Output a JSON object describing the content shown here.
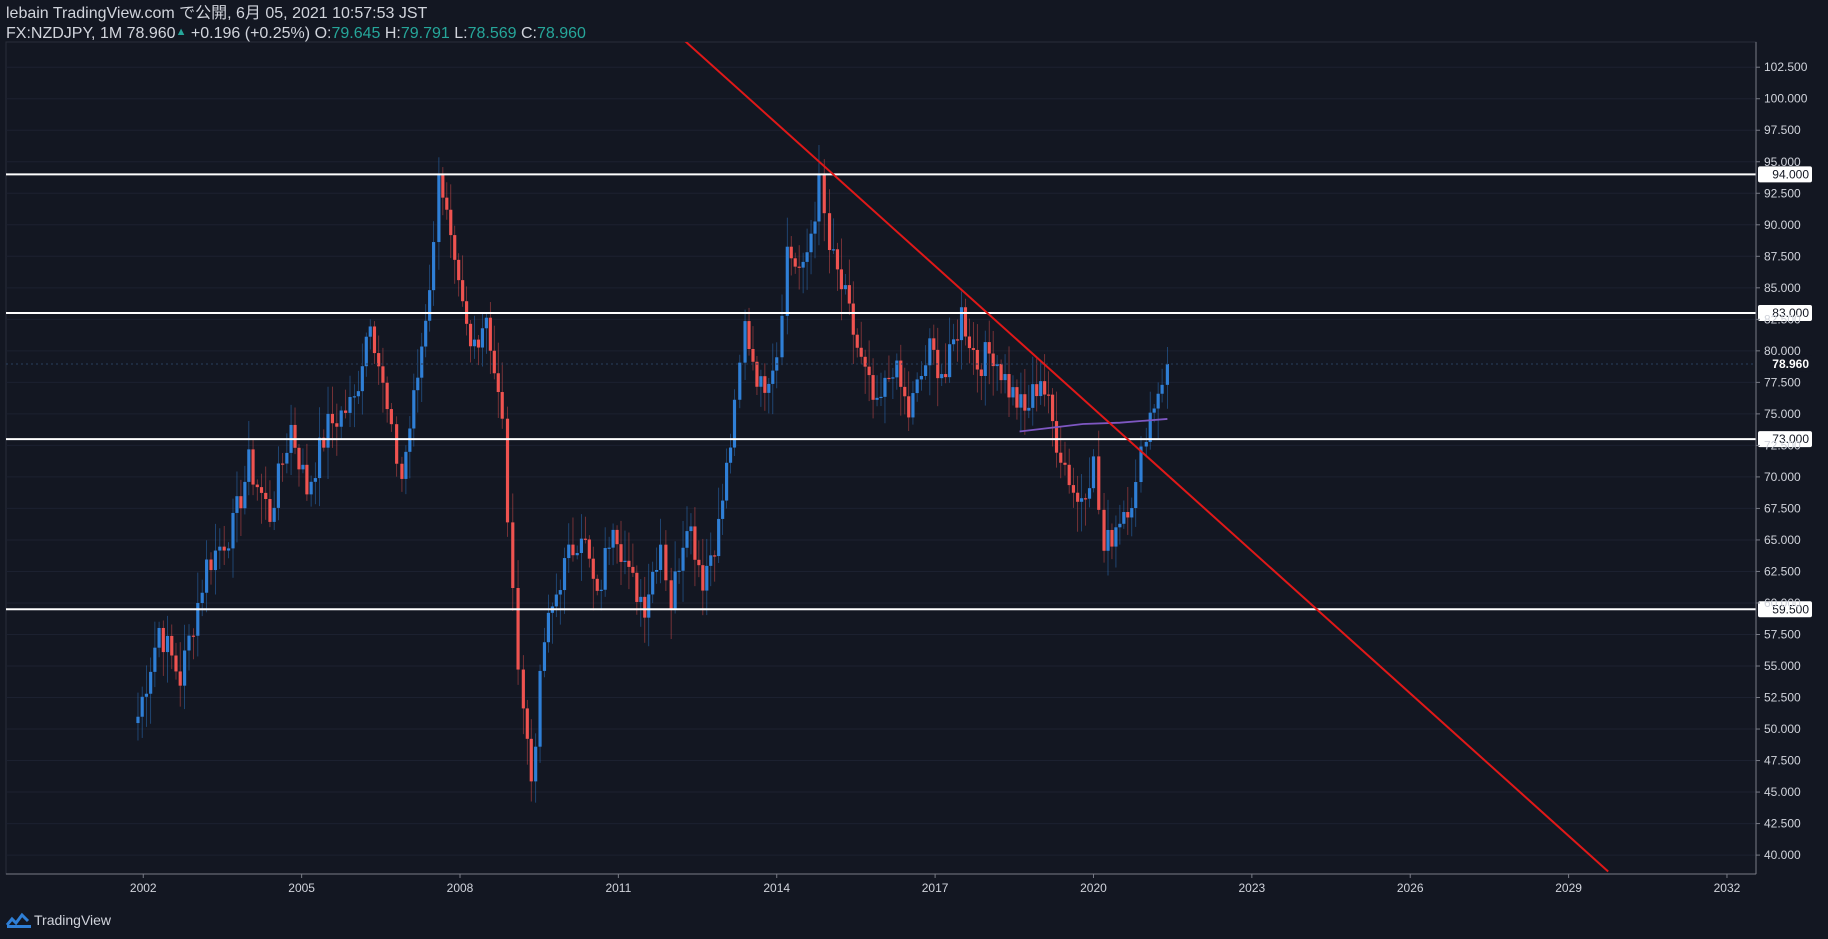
{
  "header": {
    "line1": "lebain TradingView.com で公開, 6月 05, 2021 10:57:53 JST",
    "symbol": "FX:NZDJPY, 1M 78.960",
    "change_arrow": "▲",
    "change": "+0.196 (+0.25%)",
    "open_label": "O:",
    "open": "79.645",
    "high_label": "H:",
    "high": "79.791",
    "low_label": "L:",
    "low": "78.569",
    "close_label": "C:",
    "close": "78.960"
  },
  "footer": {
    "brand": "TradingView"
  },
  "colors": {
    "background": "#131722",
    "up": "#2f7fd6",
    "down": "#ef5350",
    "trendline": "#e01818",
    "hline": "#ffffff",
    "ma": "#7e57c2",
    "axis_text": "#d1d4dc"
  },
  "chart_data": {
    "type": "candlestick",
    "symbol": "FX:NZDJPY",
    "interval": "1M",
    "ylim": [
      38.5,
      104.5
    ],
    "y_ticks": [
      "40.000",
      "42.500",
      "45.000",
      "47.500",
      "50.000",
      "52.500",
      "55.000",
      "57.500",
      "60.000",
      "62.500",
      "65.000",
      "67.500",
      "70.000",
      "72.500",
      "75.000",
      "77.500",
      "80.000",
      "82.500",
      "85.000",
      "87.500",
      "90.000",
      "92.500",
      "95.000",
      "97.500",
      "100.000",
      "102.500"
    ],
    "x_ticks": [
      "2002",
      "2005",
      "2008",
      "2011",
      "2014",
      "2017",
      "2020",
      "2023",
      "2026",
      "2029",
      "2032"
    ],
    "xlim": [
      1999.4,
      2032.55
    ],
    "price_label": "78.960",
    "last_price": 78.96,
    "horizontal_lines": [
      94.0,
      83.0,
      73.0,
      59.5
    ],
    "horizontal_line_labels": [
      "94.000",
      "83.000",
      "73.000",
      "59.500"
    ],
    "trendline": {
      "from": [
        2012.15,
        105.0
      ],
      "to": [
        2029.75,
        38.7
      ]
    },
    "moving_average": [
      [
        2018.6,
        73.6
      ],
      [
        2019.2,
        73.9
      ],
      [
        2019.8,
        74.2
      ],
      [
        2020.5,
        74.3
      ],
      [
        2021.4,
        74.6
      ]
    ],
    "price_path": [
      [
        2001.9,
        51
      ],
      [
        2002.3,
        58
      ],
      [
        2002.7,
        54
      ],
      [
        2003.2,
        63
      ],
      [
        2003.7,
        66
      ],
      [
        2004.0,
        71
      ],
      [
        2004.4,
        67
      ],
      [
        2004.8,
        74
      ],
      [
        2005.1,
        69
      ],
      [
        2005.5,
        74
      ],
      [
        2006.0,
        76
      ],
      [
        2006.3,
        83
      ],
      [
        2006.7,
        73
      ],
      [
        2006.9,
        70
      ],
      [
        2007.2,
        78
      ],
      [
        2007.5,
        88
      ],
      [
        2007.6,
        95
      ],
      [
        2007.9,
        86
      ],
      [
        2008.2,
        80
      ],
      [
        2008.5,
        83
      ],
      [
        2008.8,
        74
      ],
      [
        2009.0,
        60
      ],
      [
        2009.2,
        52
      ],
      [
        2009.35,
        46
      ],
      [
        2009.6,
        57
      ],
      [
        2009.9,
        62
      ],
      [
        2010.3,
        66
      ],
      [
        2010.6,
        60
      ],
      [
        2010.9,
        67
      ],
      [
        2011.2,
        62
      ],
      [
        2011.5,
        60
      ],
      [
        2011.8,
        65
      ],
      [
        2012.0,
        60
      ],
      [
        2012.3,
        67
      ],
      [
        2012.6,
        62
      ],
      [
        2012.9,
        66
      ],
      [
        2013.2,
        75
      ],
      [
        2013.4,
        82
      ],
      [
        2013.7,
        77
      ],
      [
        2014.0,
        80
      ],
      [
        2014.2,
        88
      ],
      [
        2014.5,
        86
      ],
      [
        2014.8,
        93
      ],
      [
        2015.0,
        88
      ],
      [
        2015.3,
        84
      ],
      [
        2015.6,
        79
      ],
      [
        2015.9,
        75
      ],
      [
        2016.2,
        79
      ],
      [
        2016.5,
        75
      ],
      [
        2016.9,
        80
      ],
      [
        2017.2,
        78
      ],
      [
        2017.5,
        83
      ],
      [
        2017.8,
        79
      ],
      [
        2018.1,
        80
      ],
      [
        2018.4,
        77
      ],
      [
        2018.7,
        75
      ],
      [
        2019.0,
        78
      ],
      [
        2019.3,
        73
      ],
      [
        2019.7,
        68
      ],
      [
        2020.0,
        71
      ],
      [
        2020.2,
        64
      ],
      [
        2020.5,
        67
      ],
      [
        2020.8,
        69
      ],
      [
        2021.0,
        74
      ],
      [
        2021.3,
        78
      ],
      [
        2021.4,
        79
      ]
    ]
  }
}
